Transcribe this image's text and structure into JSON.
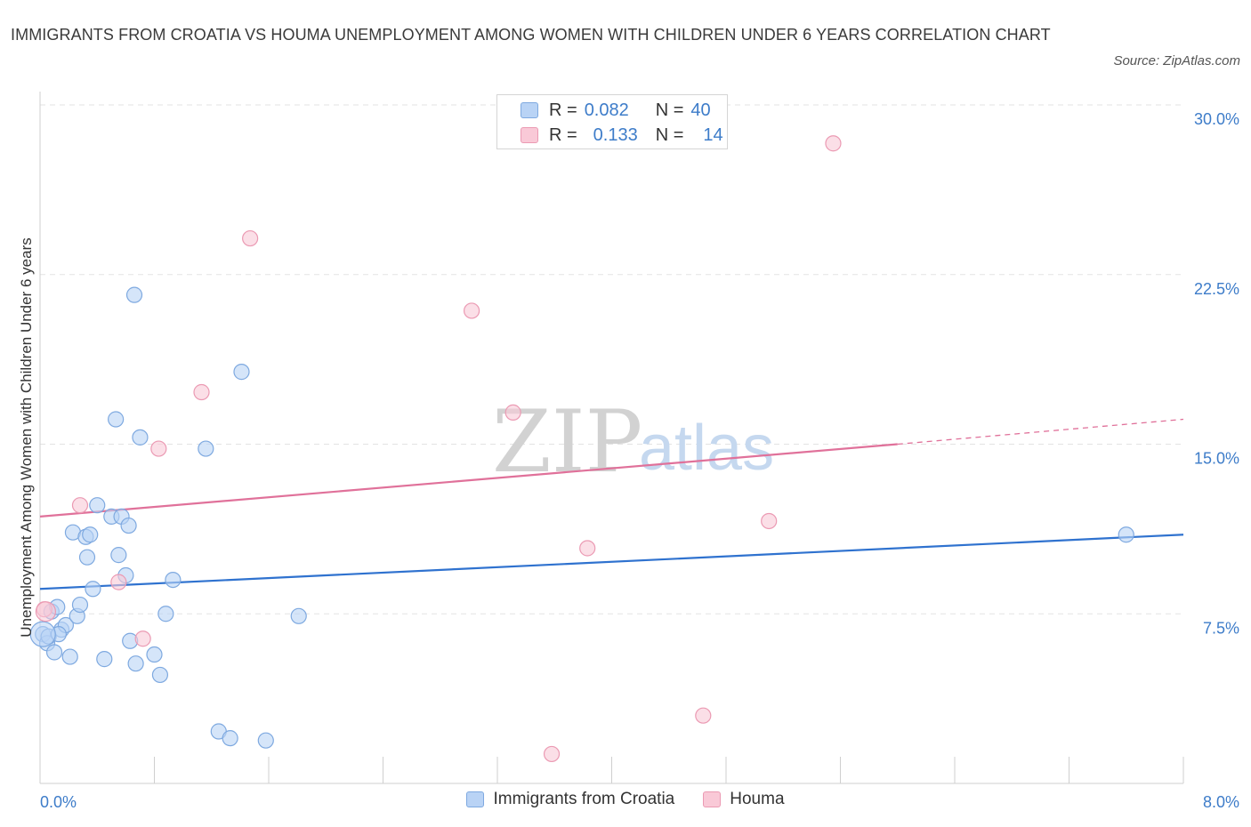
{
  "title": "IMMIGRANTS FROM CROATIA VS HOUMA UNEMPLOYMENT AMONG WOMEN WITH CHILDREN UNDER 6 YEARS CORRELATION CHART",
  "source": "Source: ZipAtlas.com",
  "watermark": {
    "zip": "ZIP",
    "atlas": "atlas"
  },
  "colors": {
    "blue_fill": "#b9d3f5",
    "blue_stroke": "#7ea9e0",
    "blue_line": "#2f72cf",
    "pink_fill": "#f9c9d7",
    "pink_stroke": "#eb9ab3",
    "pink_line": "#e0719a",
    "grid": "#e3e3e3",
    "axis_text": "#3d7cc9"
  },
  "legend": {
    "r_label": "R =",
    "n_label": "N =",
    "series": [
      {
        "r": "0.082",
        "n": "40"
      },
      {
        "r": "0.133",
        "n": "14"
      }
    ]
  },
  "chart_data": {
    "type": "scatter",
    "title": "IMMIGRANTS FROM CROATIA VS HOUMA UNEMPLOYMENT AMONG WOMEN WITH CHILDREN UNDER 6 YEARS CORRELATION CHART",
    "xlabel": "",
    "ylabel": "Unemployment Among Women with Children Under 6 years",
    "xlim": [
      0,
      8
    ],
    "ylim": [
      0,
      30
    ],
    "x_tick_labels": [
      {
        "value": 0,
        "label": "0.0%"
      },
      {
        "value": 8,
        "label": "8.0%"
      }
    ],
    "y_tick_labels": [
      {
        "value": 7.5,
        "label": "7.5%"
      },
      {
        "value": 15,
        "label": "15.0%"
      },
      {
        "value": 22.5,
        "label": "22.5%"
      },
      {
        "value": 30,
        "label": "30.0%"
      }
    ],
    "grid": true,
    "series": [
      {
        "name": "Immigrants from Croatia",
        "color": "#b9d3f5",
        "points": [
          [
            0.02,
            6.6
          ],
          [
            0.05,
            6.2
          ],
          [
            0.08,
            7.6
          ],
          [
            0.1,
            5.8
          ],
          [
            0.12,
            7.8
          ],
          [
            0.15,
            6.8
          ],
          [
            0.18,
            7.0
          ],
          [
            0.21,
            5.6
          ],
          [
            0.23,
            11.1
          ],
          [
            0.26,
            7.4
          ],
          [
            0.28,
            7.9
          ],
          [
            0.32,
            10.9
          ],
          [
            0.33,
            10.0
          ],
          [
            0.35,
            11.0
          ],
          [
            0.37,
            8.6
          ],
          [
            0.4,
            12.3
          ],
          [
            0.45,
            5.5
          ],
          [
            0.5,
            11.8
          ],
          [
            0.53,
            16.1
          ],
          [
            0.55,
            10.1
          ],
          [
            0.57,
            11.8
          ],
          [
            0.6,
            9.2
          ],
          [
            0.62,
            11.4
          ],
          [
            0.63,
            6.3
          ],
          [
            0.66,
            21.6
          ],
          [
            0.67,
            5.3
          ],
          [
            0.7,
            15.3
          ],
          [
            0.8,
            5.7
          ],
          [
            0.84,
            4.8
          ],
          [
            0.88,
            7.5
          ],
          [
            0.93,
            9.0
          ],
          [
            1.16,
            14.8
          ],
          [
            1.25,
            2.3
          ],
          [
            1.33,
            2.0
          ],
          [
            1.41,
            18.2
          ],
          [
            1.58,
            1.9
          ],
          [
            1.81,
            7.4
          ],
          [
            7.6,
            11.0
          ],
          [
            0.06,
            6.5
          ],
          [
            0.13,
            6.6
          ]
        ],
        "trend": {
          "x": [
            0,
            8
          ],
          "y": [
            8.6,
            11.0
          ]
        }
      },
      {
        "name": "Houma",
        "color": "#f9c9d7",
        "points": [
          [
            0.03,
            7.7
          ],
          [
            0.28,
            12.3
          ],
          [
            0.55,
            8.9
          ],
          [
            0.72,
            6.4
          ],
          [
            0.83,
            14.8
          ],
          [
            1.13,
            17.3
          ],
          [
            1.47,
            24.1
          ],
          [
            3.02,
            20.9
          ],
          [
            3.31,
            16.4
          ],
          [
            3.58,
            1.3
          ],
          [
            3.83,
            10.4
          ],
          [
            4.64,
            3.0
          ],
          [
            5.1,
            11.6
          ],
          [
            5.55,
            28.3
          ]
        ],
        "trend": {
          "x": [
            0,
            6.0
          ],
          "y": [
            11.8,
            15.0
          ]
        },
        "trend_extension": {
          "x": [
            6.0,
            8
          ],
          "y": [
            15.0,
            16.1
          ]
        }
      }
    ]
  }
}
